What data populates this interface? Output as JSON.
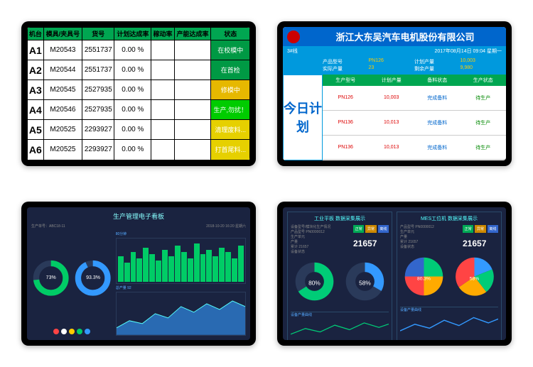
{
  "screen1": {
    "headers": [
      "机台",
      "模具/夹具号",
      "货号",
      "计划达成率",
      "稼动率",
      "产能达成率",
      "状态"
    ],
    "rows": [
      {
        "machine": "A1",
        "mold": "M20543",
        "part": "2551737",
        "rate": "0.00 %",
        "status": "在校模中",
        "status_bg": "#009944"
      },
      {
        "machine": "A2",
        "mold": "M20544",
        "part": "2551737",
        "rate": "0.00 %",
        "status": "在首检",
        "status_bg": "#009944"
      },
      {
        "machine": "A3",
        "mold": "M20545",
        "part": "2527935",
        "rate": "0.00 %",
        "status": "修模中",
        "status_bg": "#e6b800"
      },
      {
        "machine": "A4",
        "mold": "M20546",
        "part": "2527935",
        "rate": "0.00 %",
        "status": "生产,勿扰！",
        "status_bg": "#00cc00"
      },
      {
        "machine": "A5",
        "mold": "M20525",
        "part": "2293927",
        "rate": "0.00 %",
        "status": "清理废料...",
        "status_bg": "#e6d000"
      },
      {
        "machine": "A6",
        "mold": "M20525",
        "part": "2293927",
        "rate": "0.00 %",
        "status": "打首尾料...",
        "status_bg": "#e6d000"
      }
    ]
  },
  "screen2": {
    "company": "浙江大东吴汽车电机股份有限公司",
    "line": "3#线",
    "datetime": "2017年08月14日 09:04 星期一",
    "info_labels": [
      "产品型号",
      "计划产量",
      "实际产量",
      "剩余产量"
    ],
    "info_values": [
      "PN126",
      "10,003",
      "23",
      "9,980"
    ],
    "side": "今日计划",
    "headers": [
      "生产型号",
      "计划产量",
      "备料状态",
      "生产状态"
    ],
    "rows": [
      {
        "c1": "PN126",
        "c2": "10,003",
        "c3": "完成备料",
        "c4": "待生产"
      },
      {
        "c1": "PN136",
        "c2": "10,013",
        "c3": "完成备料",
        "c4": "待生产"
      },
      {
        "c1": "PN136",
        "c2": "10,013",
        "c3": "完成备料",
        "c4": "待生产"
      }
    ]
  },
  "screen3": {
    "title": "生产管理电子看板",
    "left_label": "生产单号：ABC18-11",
    "right_label": "2018-10-20  16:20  星期六",
    "donut1": {
      "pct": "73%",
      "label": "计划产量",
      "color": "#00cc66",
      "track": "#2a3a5a",
      "value": 73
    },
    "donut2": {
      "pct": "93.3%",
      "label": "良品率",
      "color": "#3399ff",
      "track": "#2a3a5a",
      "value": 93
    },
    "dot_colors": [
      "#ff4444",
      "#ffffff",
      "#ffcc00",
      "#00cc66",
      "#3399ff"
    ],
    "bar_title": "80分钟",
    "bars": [
      60,
      45,
      70,
      55,
      80,
      65,
      50,
      75,
      60,
      85,
      70,
      55,
      90,
      65,
      75,
      60,
      80,
      70,
      55,
      85
    ],
    "bar_color": "#00cc66",
    "area_color": "#3399ff",
    "area_title": "总产量 92"
  },
  "screen4": {
    "left_title": "工业平板 数据采集展示",
    "right_title": "MES工位机 数据采集展示",
    "btn_labels": [
      "正常",
      "异常",
      "离线"
    ],
    "btn_colors": [
      "#00aa55",
      "#cc8800",
      "#3366cc"
    ],
    "stats_left": [
      "设备型号/模块化生产情况",
      "产品型号 PN0000012",
      "生产单元",
      "产量",
      "累计 21657",
      "设备状态"
    ],
    "stats_right": [
      "产品型号 PN0000012",
      "生产单元",
      "产量",
      "累计 21657",
      "设备状态"
    ],
    "big_left": "21657",
    "big_right": "21657",
    "pie1": {
      "label": "达成率",
      "pct": "80%",
      "color": "#00cc77",
      "rest": "#2a3a5a"
    },
    "pie2": {
      "label": "稼动率",
      "pct": "58%",
      "color": "#3399ff",
      "rest": "#2a3a5a"
    },
    "pie3": {
      "label": "达成率",
      "pct": "80.3%",
      "colors": [
        "#00cc77",
        "#ffaa00",
        "#ff4444",
        "#3366cc"
      ]
    },
    "pie4": {
      "label": "稼动率",
      "pct": "58%",
      "colors": [
        "#3399ff",
        "#00cc77",
        "#ffaa00",
        "#ff4444"
      ]
    },
    "line_title": "设备产量曲线"
  }
}
